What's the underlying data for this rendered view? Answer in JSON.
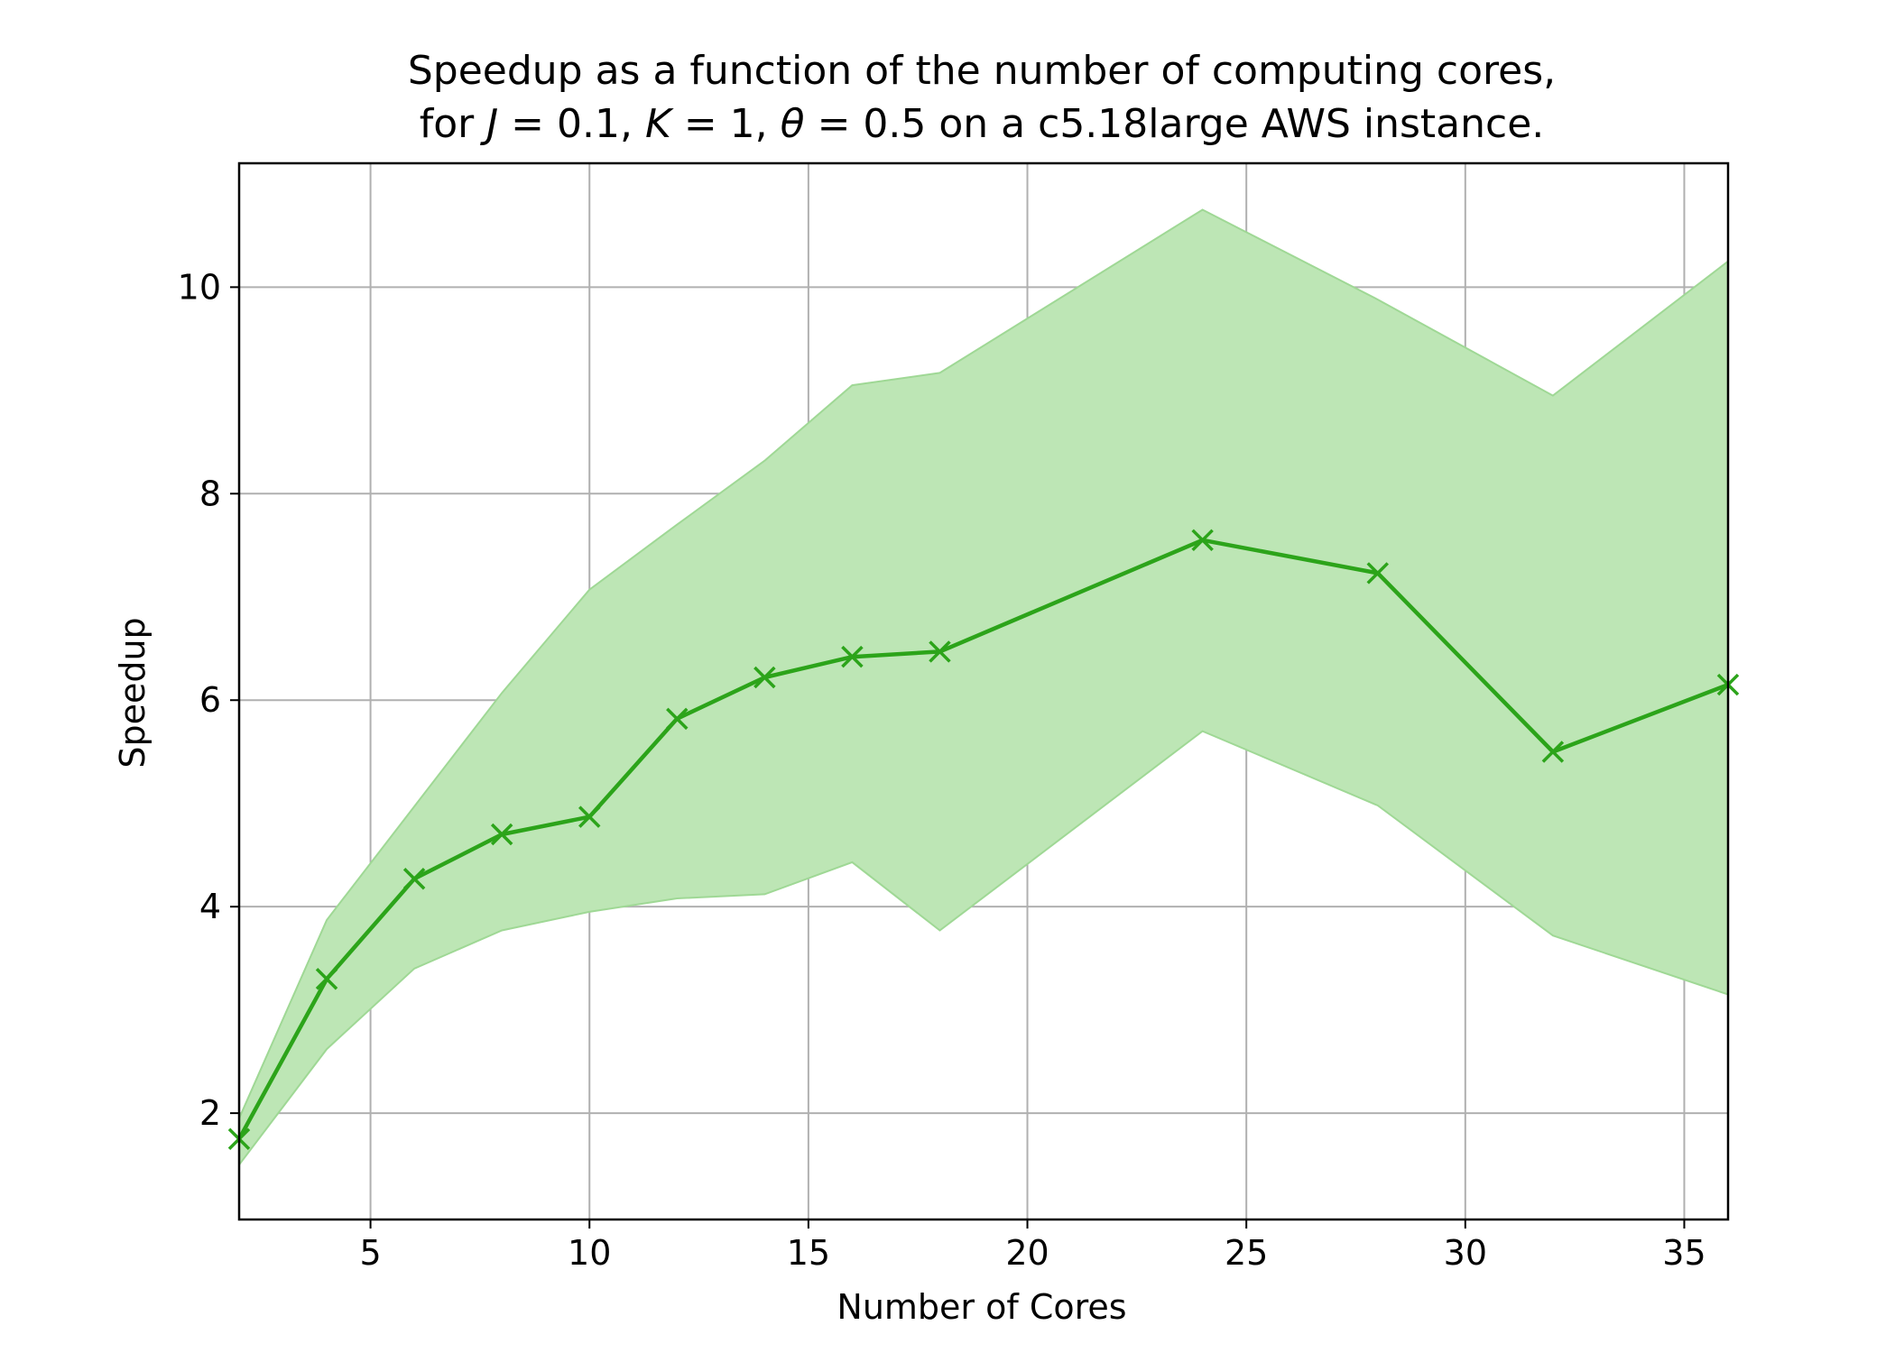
{
  "chart_data": {
    "type": "line",
    "title_line1": "Speedup as a function of the number of computing cores,",
    "title_line2_parts": {
      "prefix": "for ",
      "j_symbol": "J",
      "j_value": " = 0.1, ",
      "k_symbol": "K",
      "k_value": " = 1, ",
      "theta_symbol": "θ",
      "theta_value": " = 0.5 on a c5.18large AWS instance."
    },
    "xlabel": "Number of Cores",
    "ylabel": "Speedup",
    "xlim": [
      2,
      36
    ],
    "ylim": [
      0.97,
      11.2
    ],
    "xticks": [
      5,
      10,
      15,
      20,
      25,
      30,
      35
    ],
    "yticks": [
      2,
      4,
      6,
      8,
      10
    ],
    "grid": true,
    "series": [
      {
        "name": "Speedup",
        "color": "#2ca41a",
        "marker": "x",
        "x": [
          2,
          4,
          6,
          8,
          10,
          12,
          14,
          16,
          18,
          24,
          28,
          32,
          36
        ],
        "y": [
          1.75,
          3.3,
          4.27,
          4.7,
          4.87,
          5.82,
          6.22,
          6.42,
          6.47,
          7.55,
          7.23,
          5.5,
          6.15
        ],
        "band_upper": [
          1.95,
          3.87,
          4.97,
          6.07,
          7.07,
          7.7,
          8.32,
          9.05,
          9.17,
          10.75,
          9.88,
          8.95,
          10.25
        ],
        "band_lower": [
          1.5,
          2.62,
          3.4,
          3.77,
          3.95,
          4.08,
          4.12,
          4.43,
          3.77,
          5.7,
          4.98,
          3.72,
          3.15
        ],
        "band_color": "#bde6b5",
        "band_edge_color": "#9fd895"
      }
    ]
  }
}
